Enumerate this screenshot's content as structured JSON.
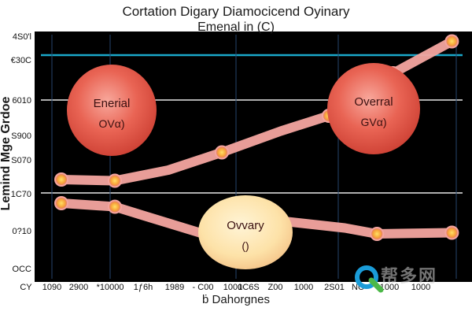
{
  "chart_data": {
    "type": "line",
    "title": "Cortation Digary Diamocicend Oyinary",
    "subtitle": "Emenal in (C)",
    "xlabel": "ḃ Dahorgnes",
    "ylabel": "Lemind Mge Grdoe",
    "x_ticks": [
      "CY",
      "1090",
      "2900",
      "*10000",
      "1ƒ6h",
      "1989",
      "- C00",
      "1000",
      "1C6S",
      "Z00",
      "1000",
      "2S01",
      "NC",
      "1000",
      "1000"
    ],
    "y_ticks": [
      "OCC",
      "0?10",
      "1C70",
      "S070",
      "S900",
      "6010",
      "€30C",
      "4S0'l"
    ],
    "grid": "horizontal",
    "series": [
      {
        "color": "#f4a5a0",
        "points": [
          [
            0.5,
            280
          ],
          [
            1.5,
            265
          ],
          [
            2.0,
            230
          ],
          [
            3.3,
            140
          ],
          [
            3.55,
            165
          ],
          [
            4.6,
            205
          ],
          [
            5.8,
            175
          ],
          [
            6.4,
            150
          ],
          [
            7.8,
            155
          ]
        ]
      },
      {
        "color": "#f4a5a0",
        "points": [
          [
            0.5,
            380
          ],
          [
            1.5,
            375
          ],
          [
            2.5,
            420
          ],
          [
            3.5,
            495
          ],
          [
            4.6,
            585
          ],
          [
            5.5,
            650
          ],
          [
            6.2,
            750
          ],
          [
            6.7,
            830
          ],
          [
            7.8,
            965
          ]
        ]
      }
    ],
    "bubbles": [
      {
        "label": "Enerial",
        "sublabel": "OVα)",
        "color": "#e25a4f"
      },
      {
        "label": "Overral",
        "sublabel": "GVα)",
        "color": "#e25a4f"
      },
      {
        "label": "Ovvary",
        "sublabel": "()",
        "color": "#fde2a8"
      }
    ]
  },
  "watermark": {
    "text": "帮多网"
  }
}
